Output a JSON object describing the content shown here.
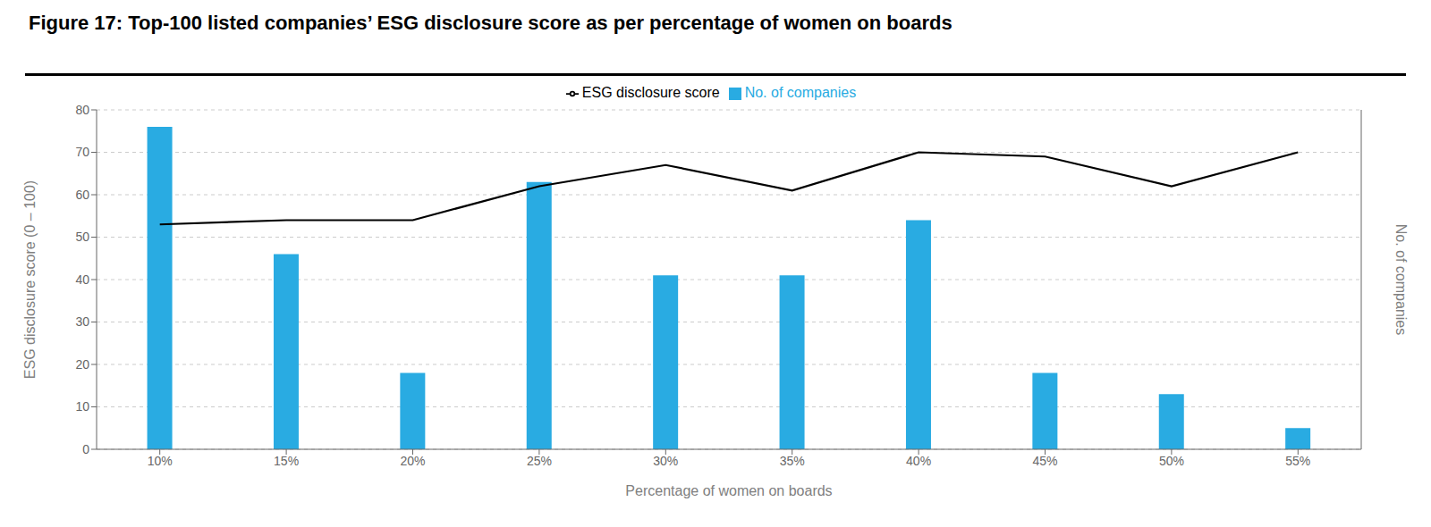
{
  "chart_data": {
    "type": "bar",
    "title": "Figure 17: Top-100 listed companies’ ESG disclosure score as per percentage of women on boards",
    "xlabel": "Percentage of women on boards",
    "ylabel": "ESG disclosure score (0 – 100)",
    "y2label": "No. of companies",
    "categories": [
      "10%",
      "15%",
      "20%",
      "25%",
      "30%",
      "35%",
      "40%",
      "45%",
      "50%",
      "55%"
    ],
    "series": [
      {
        "name": "No. of companies",
        "type": "bar",
        "color": "#29abe2",
        "values": [
          76,
          46,
          18,
          63,
          41,
          41,
          54,
          18,
          13,
          5
        ]
      },
      {
        "name": "ESG disclosure score",
        "type": "line",
        "color": "#000000",
        "axis": "y2",
        "values": [
          53,
          54,
          54,
          62,
          67,
          61,
          70,
          69,
          62,
          70
        ]
      }
    ],
    "ylim": [
      0,
      80
    ],
    "yticks": [
      0,
      10,
      20,
      30,
      40,
      50,
      60,
      70,
      80
    ],
    "y2lim": [
      0,
      80
    ],
    "y2ticks": [],
    "grid": true,
    "legend": "top"
  }
}
